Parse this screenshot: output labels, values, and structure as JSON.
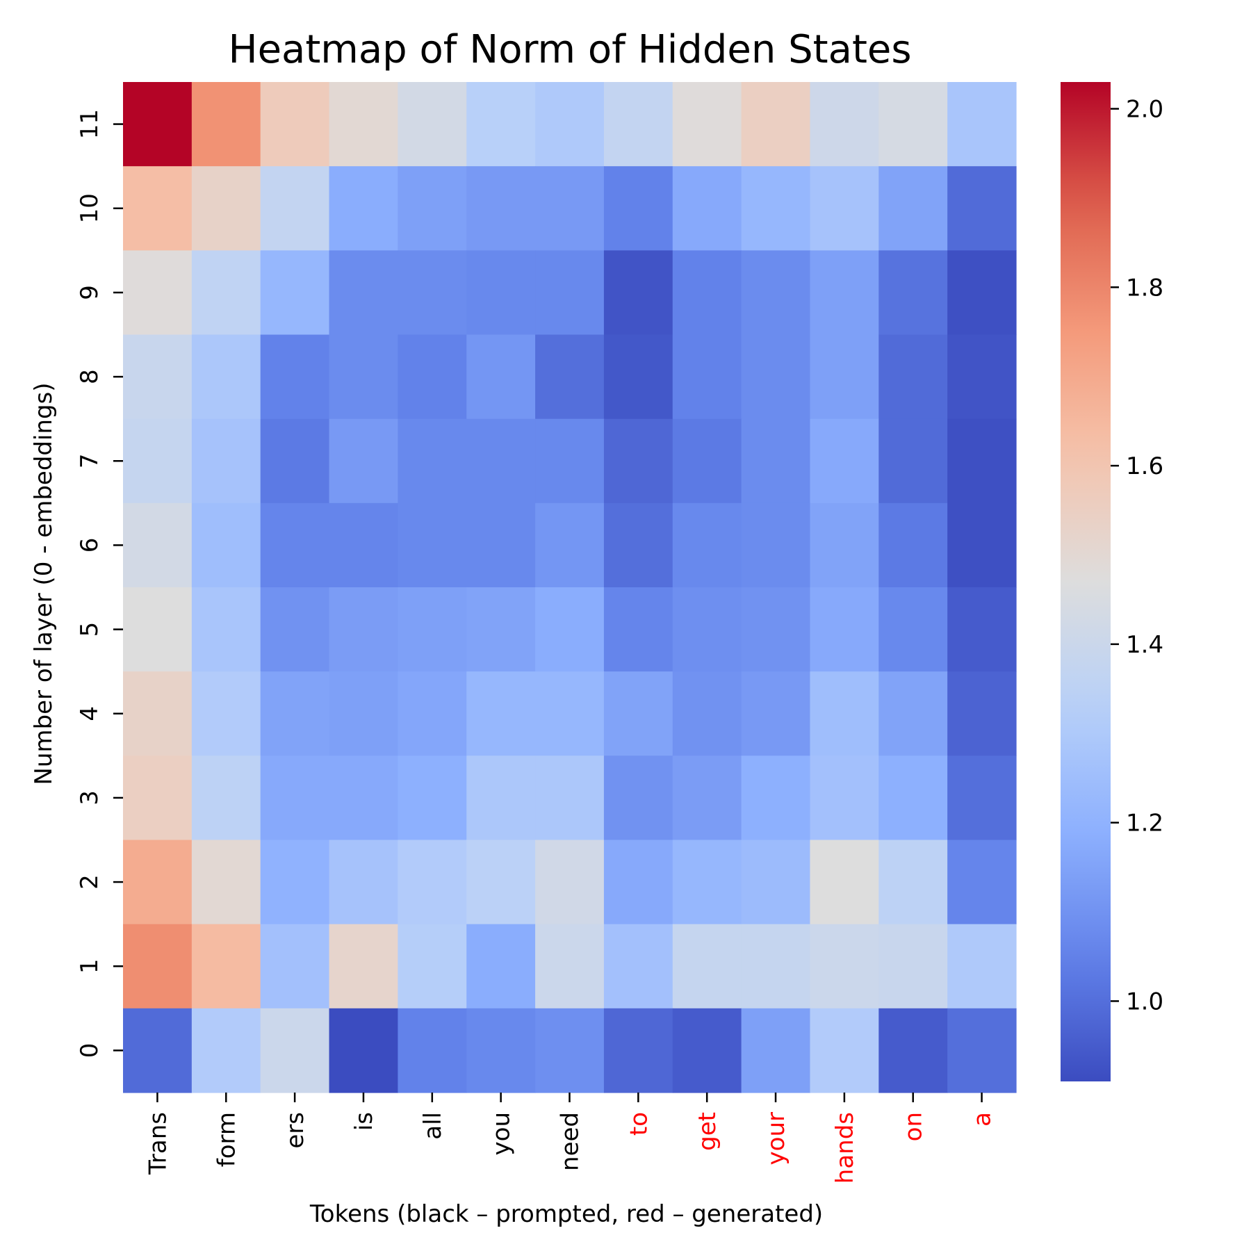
{
  "chart_data": {
    "type": "heatmap",
    "title": "Heatmap of Norm of Hidden States",
    "xlabel": "Tokens (black – prompted, red – generated)",
    "ylabel": "Number of layer (0 - embeddings)",
    "x_tokens": [
      {
        "label": "Trans",
        "color": "#000000"
      },
      {
        "label": "form",
        "color": "#000000"
      },
      {
        "label": "ers",
        "color": "#000000"
      },
      {
        "label": "is",
        "color": "#000000"
      },
      {
        "label": "all",
        "color": "#000000"
      },
      {
        "label": "you",
        "color": "#000000"
      },
      {
        "label": "need",
        "color": "#000000"
      },
      {
        "label": "to",
        "color": "#ff0000"
      },
      {
        "label": "get",
        "color": "#ff0000"
      },
      {
        "label": "your",
        "color": "#ff0000"
      },
      {
        "label": "hands",
        "color": "#ff0000"
      },
      {
        "label": "on",
        "color": "#ff0000"
      },
      {
        "label": "a",
        "color": "#ff0000"
      }
    ],
    "y_layers": [
      "11",
      "10",
      "9",
      "8",
      "7",
      "6",
      "5",
      "4",
      "3",
      "2",
      "1",
      "0"
    ],
    "values": [
      [
        2.03,
        1.77,
        1.57,
        1.5,
        1.43,
        1.33,
        1.3,
        1.37,
        1.48,
        1.55,
        1.41,
        1.44,
        1.28
      ],
      [
        1.63,
        1.53,
        1.37,
        1.18,
        1.14,
        1.12,
        1.12,
        1.05,
        1.17,
        1.22,
        1.27,
        1.15,
        0.99
      ],
      [
        1.48,
        1.36,
        1.22,
        1.08,
        1.08,
        1.07,
        1.07,
        0.93,
        1.05,
        1.08,
        1.14,
        1.01,
        0.92
      ],
      [
        1.39,
        1.29,
        1.05,
        1.08,
        1.05,
        1.11,
        1.0,
        0.94,
        1.05,
        1.08,
        1.14,
        0.99,
        0.93
      ],
      [
        1.38,
        1.27,
        1.03,
        1.12,
        1.07,
        1.07,
        1.07,
        0.98,
        1.03,
        1.08,
        1.17,
        0.99,
        0.92
      ],
      [
        1.43,
        1.25,
        1.06,
        1.06,
        1.07,
        1.07,
        1.11,
        1.0,
        1.07,
        1.08,
        1.15,
        1.03,
        0.92
      ],
      [
        1.47,
        1.28,
        1.1,
        1.13,
        1.14,
        1.15,
        1.18,
        1.06,
        1.09,
        1.1,
        1.17,
        1.07,
        0.95
      ],
      [
        1.53,
        1.31,
        1.15,
        1.14,
        1.16,
        1.22,
        1.22,
        1.15,
        1.1,
        1.12,
        1.25,
        1.15,
        0.97
      ],
      [
        1.55,
        1.35,
        1.17,
        1.17,
        1.19,
        1.29,
        1.29,
        1.1,
        1.13,
        1.19,
        1.26,
        1.19,
        1.0
      ],
      [
        1.69,
        1.5,
        1.2,
        1.27,
        1.31,
        1.34,
        1.42,
        1.17,
        1.22,
        1.24,
        1.47,
        1.35,
        1.06
      ],
      [
        1.78,
        1.64,
        1.26,
        1.52,
        1.32,
        1.18,
        1.4,
        1.26,
        1.38,
        1.38,
        1.4,
        1.39,
        1.3
      ],
      [
        0.99,
        1.31,
        1.4,
        0.91,
        1.05,
        1.07,
        1.09,
        0.98,
        0.95,
        1.14,
        1.31,
        0.95,
        1.0
      ]
    ],
    "vmin": 0.91,
    "vmax": 2.03,
    "colormap": "coolwarm",
    "colorbar_ticks": [
      1.0,
      1.2,
      1.4,
      1.6,
      1.8,
      2.0
    ],
    "colorbar_tick_labels": [
      "1.0",
      "1.2",
      "1.4",
      "1.6",
      "1.8",
      "2.0"
    ],
    "grid": false
  }
}
